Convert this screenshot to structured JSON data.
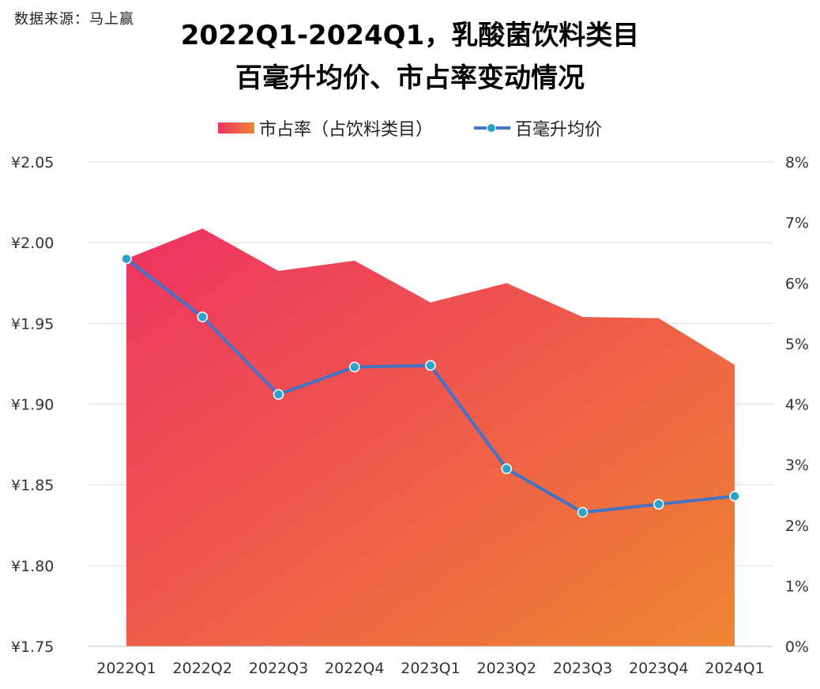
{
  "source": "数据来源：马上赢",
  "title_line1": "2022Q1-2024Q1，乳酸菌饮料类目",
  "title_line2": "百毫升均价、市占率变动情况",
  "chart_data": {
    "type": "area+line",
    "title": "2022Q1-2024Q1，乳酸菌饮料类目百毫升均价、市占率变动情况",
    "categories": [
      "2022Q1",
      "2022Q2",
      "2022Q3",
      "2022Q4",
      "2023Q1",
      "2023Q2",
      "2023Q3",
      "2023Q4",
      "2024Q1"
    ],
    "series": [
      {
        "name": "市占率（占饮料类目）",
        "type": "area",
        "axis": "right",
        "values": [
          6.4,
          6.9,
          6.2,
          6.37,
          5.68,
          6.0,
          5.44,
          5.42,
          4.65
        ],
        "color_start": "#ee3362",
        "color_end": "#ef8532"
      },
      {
        "name": "百毫升均价",
        "type": "line",
        "axis": "left",
        "values": [
          1.99,
          1.954,
          1.906,
          1.923,
          1.924,
          1.86,
          1.833,
          1.838,
          1.843
        ],
        "color": "#4472c4",
        "marker_color": "#2ea3c9"
      }
    ],
    "y_left": {
      "min": 1.75,
      "max": 2.05,
      "ticks": [
        2.05,
        2.0,
        1.95,
        1.9,
        1.85,
        1.8,
        1.75
      ],
      "tick_labels": [
        "¥2.05",
        "¥2.00",
        "¥1.95",
        "¥1.90",
        "¥1.85",
        "¥1.80",
        "¥1.75"
      ]
    },
    "y_right": {
      "min": 0,
      "max": 8,
      "ticks": [
        8,
        7,
        6,
        5,
        4,
        3,
        2,
        1,
        0
      ],
      "tick_labels": [
        "8%",
        "7%",
        "6%",
        "5%",
        "4%",
        "3%",
        "2%",
        "1%",
        "0%"
      ]
    },
    "grid": true,
    "legend_position": "top"
  }
}
